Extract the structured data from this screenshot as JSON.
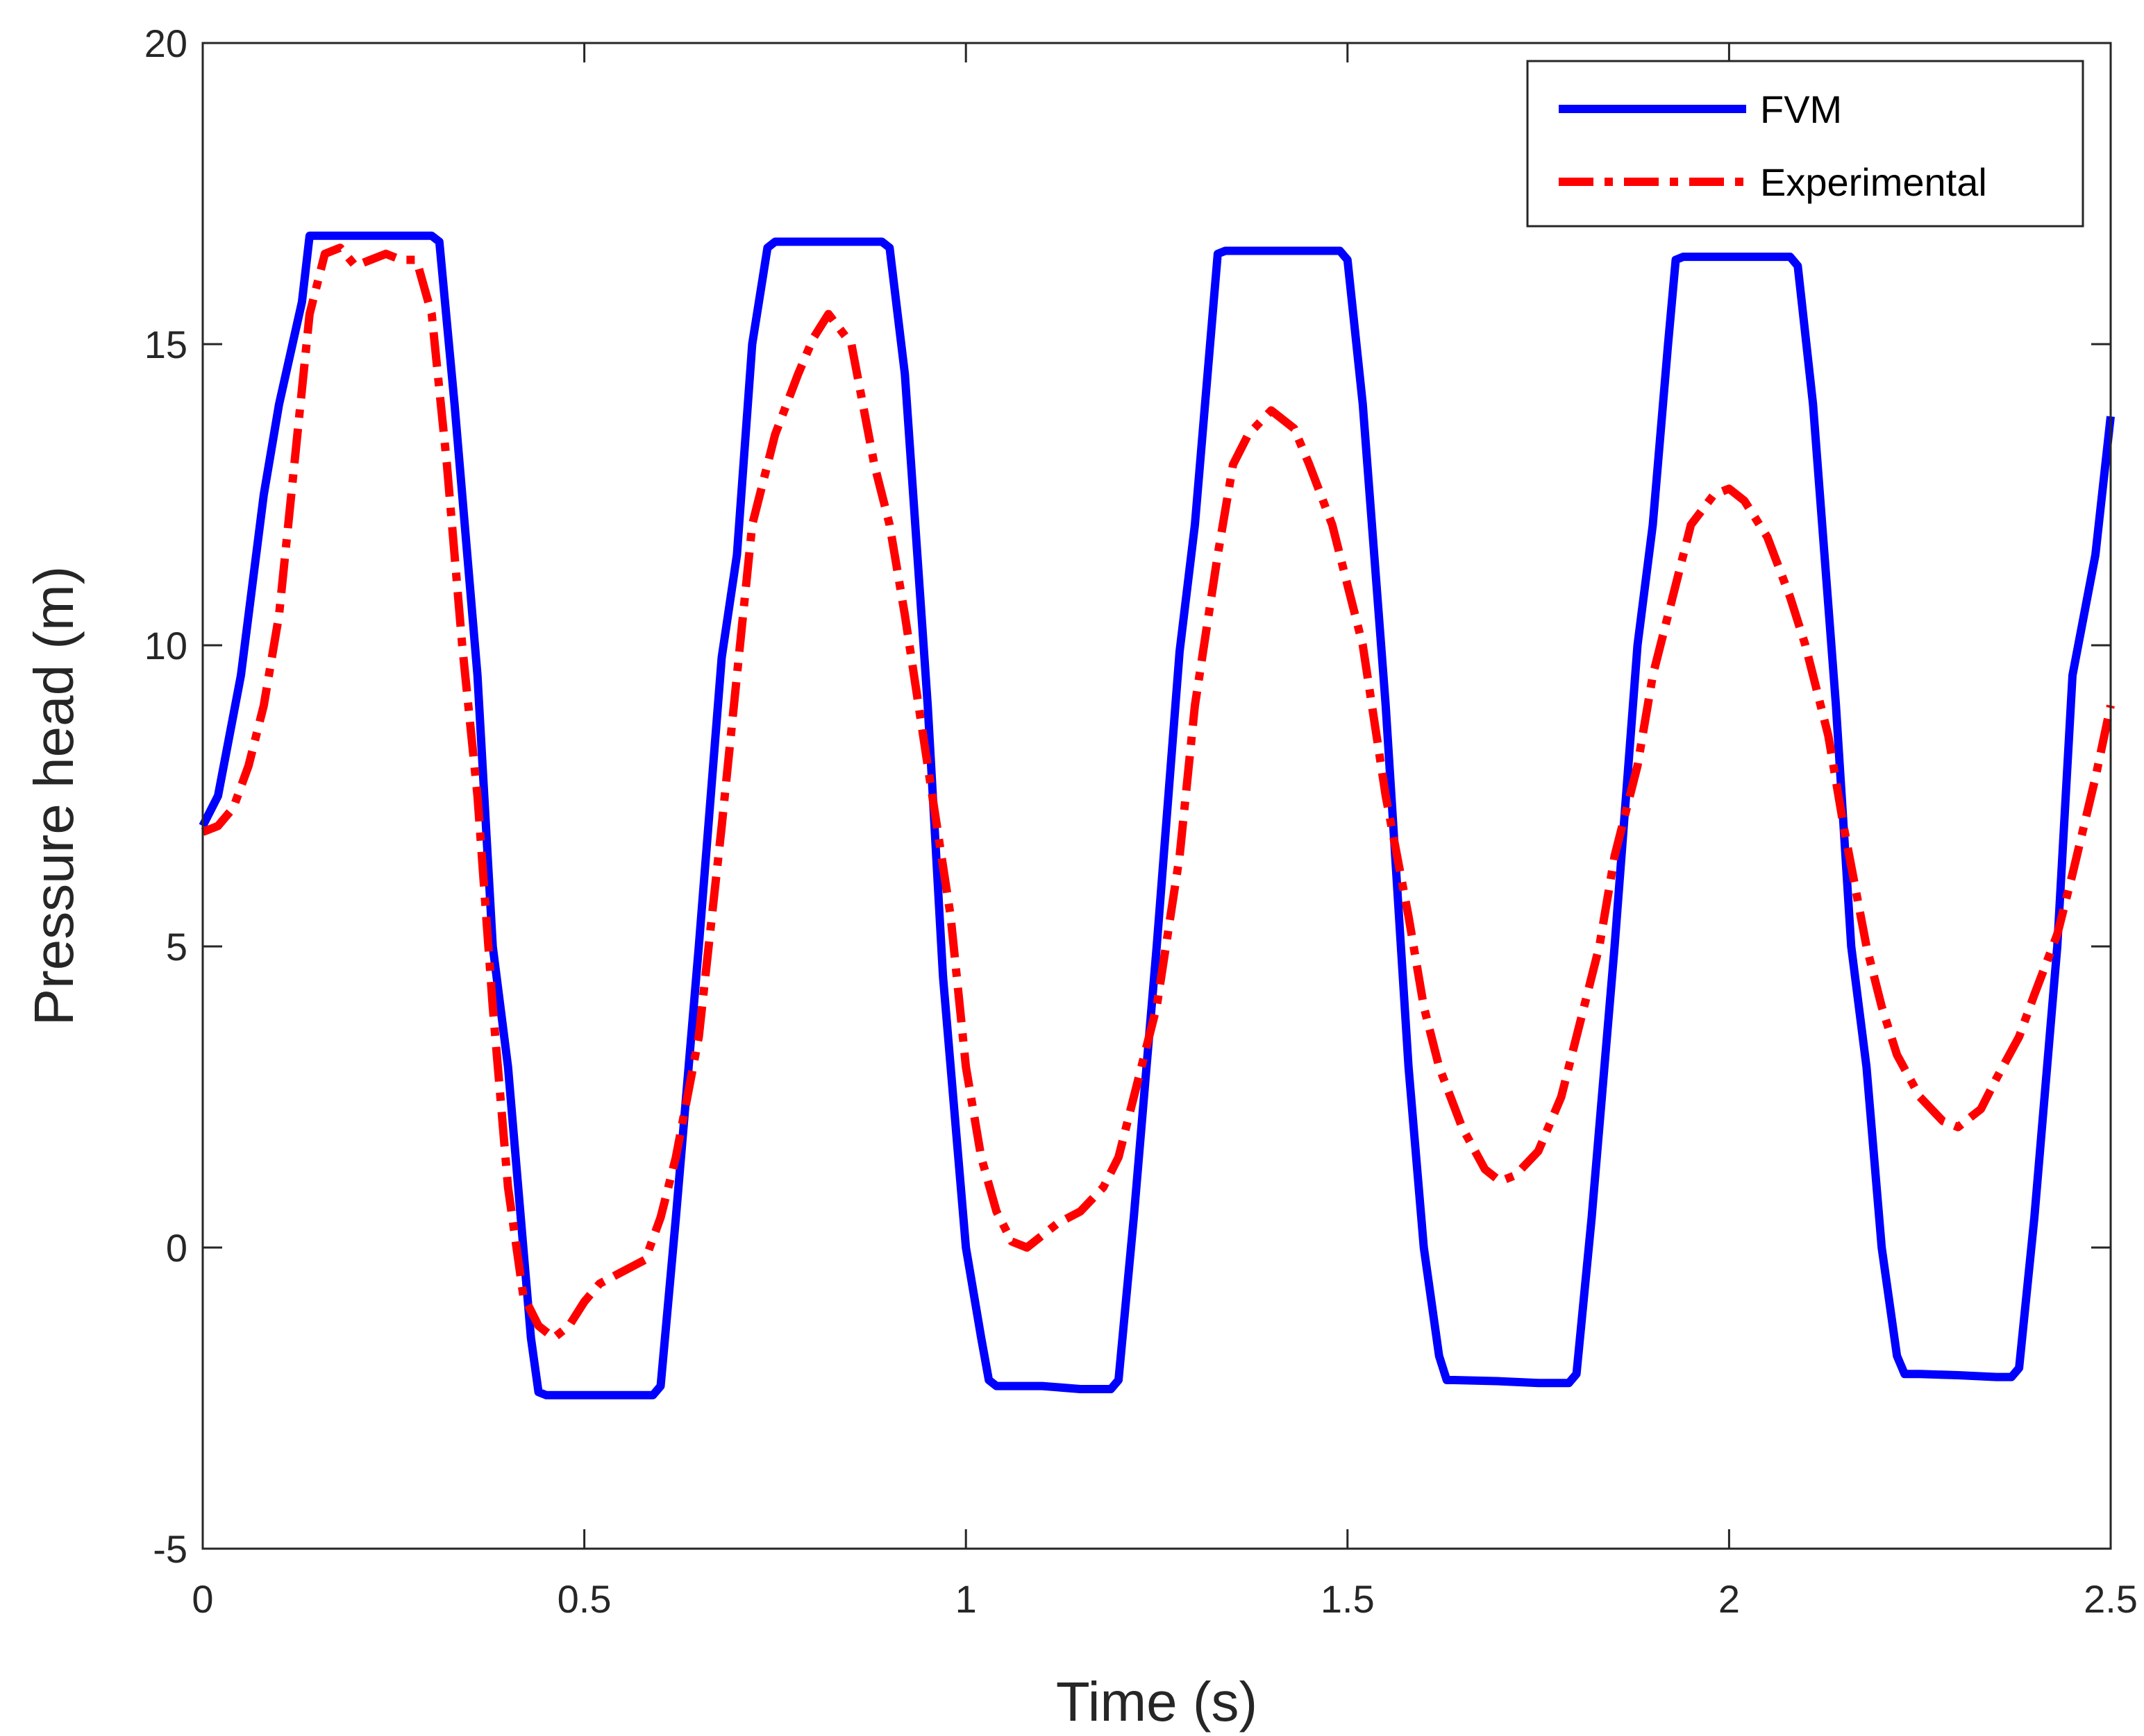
{
  "chart_data": {
    "type": "line",
    "title": "",
    "xlabel": "Time (s)",
    "ylabel": "Pressure head (m)",
    "xlim": [
      0,
      2.5
    ],
    "ylim": [
      -5,
      20
    ],
    "xticks": [
      0,
      0.5,
      1,
      1.5,
      2,
      2.5
    ],
    "yticks": [
      -5,
      0,
      5,
      10,
      15,
      20
    ],
    "xtick_labels": [
      "0",
      "0.5",
      "1",
      "1.5",
      "2",
      "2.5"
    ],
    "ytick_labels": [
      "-5",
      "0",
      "5",
      "10",
      "15",
      "20"
    ],
    "grid": false,
    "legend_position": "top-right",
    "series": [
      {
        "name": "FVM",
        "color": "#0000ff",
        "style": "solid",
        "x": [
          0,
          0.02,
          0.05,
          0.08,
          0.1,
          0.13,
          0.14,
          0.15,
          0.2,
          0.25,
          0.3,
          0.31,
          0.33,
          0.36,
          0.38,
          0.4,
          0.42,
          0.43,
          0.44,
          0.45,
          0.5,
          0.55,
          0.59,
          0.6,
          0.62,
          0.65,
          0.68,
          0.7,
          0.72,
          0.74,
          0.75,
          0.8,
          0.85,
          0.89,
          0.9,
          0.92,
          0.95,
          0.97,
          0.98,
          1.0,
          1.02,
          1.03,
          1.04,
          1.1,
          1.15,
          1.19,
          1.2,
          1.22,
          1.25,
          1.28,
          1.3,
          1.32,
          1.33,
          1.34,
          1.4,
          1.45,
          1.49,
          1.5,
          1.52,
          1.55,
          1.57,
          1.58,
          1.6,
          1.62,
          1.63,
          1.64,
          1.7,
          1.75,
          1.79,
          1.8,
          1.82,
          1.85,
          1.88,
          1.9,
          1.92,
          1.93,
          1.94,
          2.0,
          2.05,
          2.08,
          2.09,
          2.11,
          2.14,
          2.16,
          2.18,
          2.2,
          2.22,
          2.23,
          2.25,
          2.3,
          2.35,
          2.37,
          2.38,
          2.4,
          2.43,
          2.45,
          2.48,
          2.5
        ],
        "y": [
          7.0,
          7.5,
          9.5,
          12.5,
          14.0,
          15.7,
          16.8,
          16.8,
          16.8,
          16.8,
          16.8,
          16.7,
          14.0,
          9.5,
          5.0,
          3.0,
          0.0,
          -1.5,
          -2.4,
          -2.45,
          -2.45,
          -2.45,
          -2.45,
          -2.3,
          0.5,
          5.0,
          9.8,
          11.5,
          15.0,
          16.6,
          16.7,
          16.7,
          16.7,
          16.7,
          16.6,
          14.5,
          9.0,
          4.5,
          3.0,
          0.0,
          -1.5,
          -2.2,
          -2.3,
          -2.3,
          -2.35,
          -2.35,
          -2.2,
          0.5,
          5.0,
          9.9,
          12.0,
          15.0,
          16.5,
          16.55,
          16.55,
          16.55,
          16.55,
          16.4,
          14.0,
          9.0,
          5.0,
          3.0,
          0.0,
          -1.8,
          -2.2,
          -2.2,
          -2.22,
          -2.25,
          -2.25,
          -2.1,
          0.5,
          5.0,
          10.0,
          12.0,
          15.0,
          16.4,
          16.45,
          16.45,
          16.45,
          16.45,
          16.3,
          14.0,
          9.0,
          5.0,
          3.0,
          0.0,
          -1.8,
          -2.1,
          -2.1,
          -2.12,
          -2.15,
          -2.15,
          -2.0,
          0.5,
          5.0,
          9.5,
          11.5,
          13.8
        ]
      },
      {
        "name": "Experimental",
        "color": "#ff0000",
        "style": "dashdot",
        "x": [
          0,
          0.02,
          0.04,
          0.06,
          0.08,
          0.1,
          0.12,
          0.14,
          0.16,
          0.18,
          0.2,
          0.22,
          0.24,
          0.26,
          0.28,
          0.3,
          0.32,
          0.34,
          0.36,
          0.38,
          0.4,
          0.42,
          0.44,
          0.46,
          0.48,
          0.5,
          0.52,
          0.55,
          0.58,
          0.6,
          0.62,
          0.65,
          0.68,
          0.7,
          0.72,
          0.75,
          0.78,
          0.8,
          0.82,
          0.85,
          0.88,
          0.9,
          0.92,
          0.95,
          0.98,
          1.0,
          1.02,
          1.04,
          1.06,
          1.08,
          1.1,
          1.12,
          1.15,
          1.18,
          1.2,
          1.22,
          1.25,
          1.28,
          1.3,
          1.33,
          1.35,
          1.37,
          1.4,
          1.43,
          1.45,
          1.48,
          1.5,
          1.52,
          1.55,
          1.58,
          1.6,
          1.62,
          1.65,
          1.68,
          1.7,
          1.72,
          1.75,
          1.78,
          1.8,
          1.83,
          1.85,
          1.88,
          1.9,
          1.93,
          1.95,
          1.98,
          2.0,
          2.02,
          2.05,
          2.08,
          2.1,
          2.13,
          2.15,
          2.18,
          2.2,
          2.22,
          2.25,
          2.28,
          2.3,
          2.33,
          2.35,
          2.38,
          2.4,
          2.43,
          2.45,
          2.48,
          2.5
        ],
        "y": [
          6.9,
          7.0,
          7.3,
          8.0,
          9.0,
          10.5,
          13.0,
          15.5,
          16.5,
          16.6,
          16.3,
          16.4,
          16.5,
          16.4,
          16.4,
          15.5,
          13.0,
          10.0,
          7.5,
          4.0,
          1.0,
          -0.8,
          -1.3,
          -1.5,
          -1.3,
          -0.9,
          -0.6,
          -0.4,
          -0.2,
          0.5,
          1.5,
          3.5,
          7.0,
          9.5,
          12.0,
          13.5,
          14.5,
          15.1,
          15.5,
          15.0,
          13.0,
          12.0,
          10.5,
          8.0,
          5.5,
          3.0,
          1.5,
          0.6,
          0.1,
          0.0,
          0.2,
          0.4,
          0.6,
          1.0,
          1.5,
          2.5,
          4.0,
          6.5,
          9.0,
          11.5,
          13.0,
          13.5,
          13.9,
          13.6,
          13.0,
          12.0,
          11.0,
          10.0,
          7.5,
          5.5,
          4.0,
          3.0,
          2.0,
          1.3,
          1.1,
          1.2,
          1.6,
          2.5,
          3.5,
          5.0,
          6.5,
          8.0,
          9.5,
          11.0,
          12.0,
          12.5,
          12.6,
          12.4,
          11.8,
          10.8,
          10.0,
          8.5,
          7.0,
          5.0,
          4.0,
          3.2,
          2.5,
          2.1,
          2.0,
          2.3,
          2.8,
          3.5,
          4.2,
          5.2,
          6.2,
          7.8,
          9.0
        ]
      }
    ]
  }
}
